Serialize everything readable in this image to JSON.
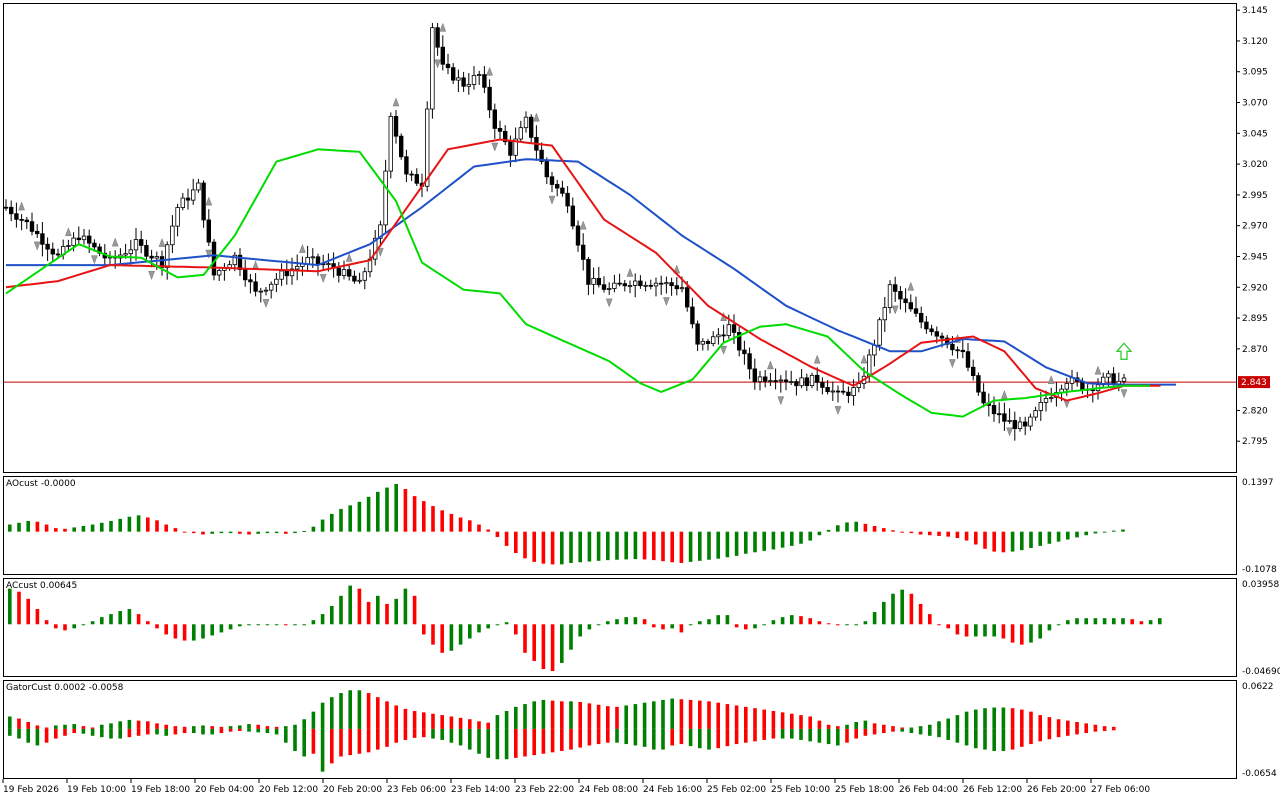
{
  "colors": {
    "bull": "#008000",
    "bear": "#ff0000",
    "jaw": "#1e50c8",
    "teeth": "#e61414",
    "lips": "#00dc00",
    "current_line": "#c80000",
    "fractal": "#999999",
    "arrow": "#32cd32"
  },
  "panes": {
    "ao_label": "AOcust -0.0000",
    "ac_label": "ACcust 0.00645",
    "gator_label": "GatorCust 0.0002 -0.0058"
  },
  "price_scale": [
    "3.145",
    "3.120",
    "3.095",
    "3.070",
    "3.045",
    "3.020",
    "2.995",
    "2.970",
    "2.945",
    "2.920",
    "2.895",
    "2.870",
    "2.820",
    "2.795"
  ],
  "current_price": "2.843",
  "ao_scale": {
    "max": "0.1397",
    "min": "-0.1078"
  },
  "ac_scale": {
    "max": "0.03958",
    "min": "-0.04690"
  },
  "gator_scale": {
    "max": "0.0622",
    "min": "-0.0654"
  },
  "time_labels": [
    "19 Feb 2026",
    "19 Feb 10:00",
    "19 Feb 18:00",
    "20 Feb 04:00",
    "20 Feb 12:00",
    "20 Feb 20:00",
    "23 Feb 06:00",
    "23 Feb 14:00",
    "23 Feb 22:00",
    "24 Feb 08:00",
    "24 Feb 16:00",
    "25 Feb 02:00",
    "25 Feb 10:00",
    "25 Feb 18:00",
    "26 Feb 04:00",
    "26 Feb 12:00",
    "26 Feb 20:00",
    "27 Feb 06:00"
  ],
  "chart_data": {
    "type": "candlestick",
    "timeframe": "1 hour",
    "ylim": [
      2.77,
      3.15
    ],
    "close_path": [
      [
        0,
        2.985
      ],
      [
        4,
        2.972
      ],
      [
        10,
        2.945
      ],
      [
        14,
        2.962
      ],
      [
        20,
        2.941
      ],
      [
        25,
        2.955
      ],
      [
        30,
        2.94
      ],
      [
        33,
        2.985
      ],
      [
        37,
        3.002
      ],
      [
        40,
        2.93
      ],
      [
        44,
        2.945
      ],
      [
        48,
        2.915
      ],
      [
        53,
        2.93
      ],
      [
        58,
        2.942
      ],
      [
        63,
        2.936
      ],
      [
        68,
        2.922
      ],
      [
        72,
        2.968
      ],
      [
        74,
        3.062
      ],
      [
        77,
        3.01
      ],
      [
        80,
        3.005
      ],
      [
        82,
        3.132
      ],
      [
        84,
        3.098
      ],
      [
        88,
        3.085
      ],
      [
        91,
        3.092
      ],
      [
        94,
        3.052
      ],
      [
        97,
        3.03
      ],
      [
        100,
        3.055
      ],
      [
        104,
        3.01
      ],
      [
        108,
        2.99
      ],
      [
        112,
        2.925
      ],
      [
        116,
        2.918
      ],
      [
        120,
        2.925
      ],
      [
        125,
        2.924
      ],
      [
        130,
        2.92
      ],
      [
        133,
        2.872
      ],
      [
        136,
        2.878
      ],
      [
        139,
        2.888
      ],
      [
        144,
        2.846
      ],
      [
        148,
        2.848
      ],
      [
        152,
        2.843
      ],
      [
        156,
        2.845
      ],
      [
        160,
        2.832
      ],
      [
        164,
        2.838
      ],
      [
        167,
        2.875
      ],
      [
        170,
        2.92
      ],
      [
        172,
        2.91
      ],
      [
        176,
        2.892
      ],
      [
        180,
        2.88
      ],
      [
        184,
        2.865
      ],
      [
        188,
        2.825
      ],
      [
        192,
        2.812
      ],
      [
        196,
        2.805
      ],
      [
        200,
        2.83
      ],
      [
        204,
        2.845
      ],
      [
        208,
        2.838
      ],
      [
        212,
        2.846
      ],
      [
        214,
        2.843
      ]
    ],
    "jaw_path": [
      [
        0,
        2.938
      ],
      [
        20,
        2.938
      ],
      [
        40,
        2.946
      ],
      [
        60,
        2.938
      ],
      [
        70,
        2.955
      ],
      [
        80,
        2.985
      ],
      [
        90,
        3.018
      ],
      [
        100,
        3.024
      ],
      [
        110,
        3.022
      ],
      [
        120,
        2.995
      ],
      [
        130,
        2.962
      ],
      [
        140,
        2.935
      ],
      [
        150,
        2.905
      ],
      [
        160,
        2.885
      ],
      [
        170,
        2.868
      ],
      [
        176,
        2.868
      ],
      [
        184,
        2.878
      ],
      [
        192,
        2.876
      ],
      [
        200,
        2.855
      ],
      [
        208,
        2.842
      ],
      [
        215,
        2.841
      ]
    ],
    "teeth_path": [
      [
        0,
        2.92
      ],
      [
        10,
        2.925
      ],
      [
        20,
        2.938
      ],
      [
        40,
        2.936
      ],
      [
        60,
        2.933
      ],
      [
        70,
        2.942
      ],
      [
        78,
        2.99
      ],
      [
        85,
        3.032
      ],
      [
        95,
        3.04
      ],
      [
        105,
        3.035
      ],
      [
        115,
        2.975
      ],
      [
        125,
        2.948
      ],
      [
        135,
        2.905
      ],
      [
        145,
        2.878
      ],
      [
        155,
        2.855
      ],
      [
        163,
        2.84
      ],
      [
        170,
        2.858
      ],
      [
        176,
        2.875
      ],
      [
        186,
        2.88
      ],
      [
        192,
        2.868
      ],
      [
        198,
        2.838
      ],
      [
        204,
        2.828
      ],
      [
        210,
        2.834
      ],
      [
        215,
        2.84
      ]
    ],
    "lips_path": [
      [
        0,
        2.915
      ],
      [
        8,
        2.938
      ],
      [
        14,
        2.955
      ],
      [
        20,
        2.945
      ],
      [
        26,
        2.944
      ],
      [
        33,
        2.928
      ],
      [
        38,
        2.93
      ],
      [
        44,
        2.962
      ],
      [
        52,
        3.022
      ],
      [
        60,
        3.032
      ],
      [
        68,
        3.03
      ],
      [
        75,
        2.99
      ],
      [
        80,
        2.94
      ],
      [
        88,
        2.918
      ],
      [
        95,
        2.915
      ],
      [
        100,
        2.89
      ],
      [
        108,
        2.875
      ],
      [
        116,
        2.86
      ],
      [
        122,
        2.842
      ],
      [
        126,
        2.835
      ],
      [
        132,
        2.845
      ],
      [
        138,
        2.875
      ],
      [
        145,
        2.888
      ],
      [
        150,
        2.89
      ],
      [
        158,
        2.88
      ],
      [
        165,
        2.852
      ],
      [
        172,
        2.833
      ],
      [
        178,
        2.818
      ],
      [
        184,
        2.815
      ],
      [
        190,
        2.828
      ],
      [
        196,
        2.83
      ],
      [
        204,
        2.835
      ],
      [
        210,
        2.838
      ],
      [
        215,
        2.84
      ]
    ],
    "ao": [
      0.02,
      0.025,
      0.03,
      0.028,
      0.02,
      0.01,
      0.008,
      0.012,
      0.016,
      0.02,
      0.025,
      0.03,
      0.036,
      0.042,
      0.046,
      0.04,
      0.032,
      0.02,
      0.01,
      0.0,
      -0.004,
      -0.008,
      -0.006,
      -0.004,
      -0.004,
      -0.006,
      -0.008,
      -0.006,
      -0.004,
      -0.004,
      -0.006,
      -0.004,
      0.002,
      0.014,
      0.034,
      0.05,
      0.064,
      0.074,
      0.084,
      0.098,
      0.112,
      0.124,
      0.134,
      0.12,
      0.1,
      0.086,
      0.072,
      0.06,
      0.05,
      0.04,
      0.032,
      0.02,
      0.006,
      -0.015,
      -0.04,
      -0.06,
      -0.075,
      -0.085,
      -0.09,
      -0.092,
      -0.092,
      -0.088,
      -0.086,
      -0.084,
      -0.082,
      -0.08,
      -0.079,
      -0.078,
      -0.077,
      -0.078,
      -0.08,
      -0.083,
      -0.086,
      -0.088,
      -0.085,
      -0.082,
      -0.079,
      -0.076,
      -0.072,
      -0.068,
      -0.062,
      -0.058,
      -0.054,
      -0.05,
      -0.045,
      -0.04,
      -0.034,
      -0.025,
      -0.01,
      0.005,
      0.018,
      0.026,
      0.028,
      0.022,
      0.016,
      0.01,
      0.004,
      0.0,
      -0.004,
      -0.008,
      -0.01,
      -0.012,
      -0.014,
      -0.018,
      -0.025,
      -0.036,
      -0.048,
      -0.056,
      -0.058,
      -0.056,
      -0.052,
      -0.046,
      -0.04,
      -0.034,
      -0.028,
      -0.022,
      -0.016,
      -0.01,
      -0.005,
      -0.001,
      0.003,
      0.006
    ],
    "ac": [
      0.035,
      0.032,
      0.025,
      0.015,
      0.004,
      -0.004,
      -0.006,
      -0.004,
      -0.001,
      0.003,
      0.007,
      0.01,
      0.013,
      0.015,
      0.01,
      0.003,
      -0.004,
      -0.01,
      -0.014,
      -0.016,
      -0.016,
      -0.014,
      -0.011,
      -0.008,
      -0.005,
      -0.002,
      -0.001,
      0.0,
      0.0,
      0.0,
      -0.001,
      -0.001,
      -0.001,
      0.004,
      0.01,
      0.018,
      0.028,
      0.038,
      0.035,
      0.022,
      0.028,
      0.02,
      0.025,
      0.035,
      0.028,
      -0.01,
      -0.02,
      -0.028,
      -0.026,
      -0.02,
      -0.014,
      -0.008,
      -0.004,
      -0.001,
      0.002,
      -0.01,
      -0.028,
      -0.036,
      -0.044,
      -0.046,
      -0.038,
      -0.025,
      -0.012,
      -0.005,
      0.0,
      0.003,
      0.005,
      0.007,
      0.007,
      0.005,
      -0.003,
      -0.005,
      -0.004,
      -0.008,
      -0.001,
      0.003,
      0.005,
      0.009,
      0.009,
      -0.003,
      -0.005,
      -0.004,
      0.0,
      0.004,
      0.007,
      0.009,
      0.008,
      0.006,
      0.003,
      0.001,
      -0.001,
      -0.001,
      -0.001,
      0.003,
      0.012,
      0.022,
      0.03,
      0.034,
      0.03,
      0.02,
      0.01,
      0.0,
      -0.004,
      -0.01,
      -0.012,
      -0.012,
      -0.012,
      -0.012,
      -0.014,
      -0.018,
      -0.02,
      -0.018,
      -0.014,
      -0.006,
      -0.001,
      0.004,
      0.006,
      0.006,
      0.006,
      0.006,
      0.006,
      0.006,
      0.005,
      0.003,
      0.004,
      0.006
    ],
    "gator_upper": [
      0.018,
      0.015,
      0.01,
      0.005,
      0.002,
      0.005,
      0.006,
      0.007,
      0.004,
      0.002,
      0.006,
      0.008,
      0.011,
      0.013,
      0.012,
      0.011,
      0.008,
      0.006,
      0.004,
      0.003,
      0.004,
      0.005,
      0.004,
      0.003,
      0.004,
      0.005,
      0.007,
      0.006,
      0.004,
      0.003,
      0.004,
      0.006,
      0.014,
      0.025,
      0.038,
      0.046,
      0.052,
      0.056,
      0.056,
      0.052,
      0.046,
      0.04,
      0.034,
      0.029,
      0.026,
      0.024,
      0.022,
      0.02,
      0.018,
      0.016,
      0.014,
      0.011,
      0.009,
      0.02,
      0.026,
      0.032,
      0.036,
      0.04,
      0.042,
      0.041,
      0.04,
      0.04,
      0.039,
      0.037,
      0.035,
      0.033,
      0.032,
      0.034,
      0.036,
      0.038,
      0.04,
      0.042,
      0.044,
      0.043,
      0.042,
      0.041,
      0.04,
      0.038,
      0.036,
      0.034,
      0.032,
      0.03,
      0.028,
      0.026,
      0.024,
      0.022,
      0.02,
      0.018,
      0.012,
      0.006,
      0.004,
      0.006,
      0.01,
      0.012,
      0.008,
      0.006,
      0.004,
      0.002,
      0.002,
      0.004,
      0.006,
      0.011,
      0.015,
      0.02,
      0.025,
      0.028,
      0.03,
      0.031,
      0.031,
      0.03,
      0.028,
      0.025,
      0.02,
      0.017,
      0.014,
      0.012,
      0.01,
      0.008,
      0.006,
      0.004,
      0.003
    ],
    "gator_lower": [
      -0.01,
      -0.014,
      -0.02,
      -0.024,
      -0.02,
      -0.014,
      -0.01,
      -0.006,
      -0.007,
      -0.01,
      -0.012,
      -0.014,
      -0.014,
      -0.012,
      -0.01,
      -0.008,
      -0.008,
      -0.01,
      -0.008,
      -0.006,
      -0.006,
      -0.008,
      -0.008,
      -0.006,
      -0.004,
      -0.003,
      -0.004,
      -0.005,
      -0.006,
      -0.008,
      -0.02,
      -0.032,
      -0.04,
      -0.036,
      -0.062,
      -0.05,
      -0.04,
      -0.038,
      -0.036,
      -0.034,
      -0.03,
      -0.026,
      -0.02,
      -0.016,
      -0.013,
      -0.012,
      -0.014,
      -0.016,
      -0.02,
      -0.024,
      -0.03,
      -0.036,
      -0.042,
      -0.044,
      -0.044,
      -0.042,
      -0.04,
      -0.038,
      -0.036,
      -0.034,
      -0.032,
      -0.03,
      -0.027,
      -0.024,
      -0.022,
      -0.02,
      -0.02,
      -0.022,
      -0.024,
      -0.026,
      -0.03,
      -0.03,
      -0.024,
      -0.022,
      -0.025,
      -0.028,
      -0.03,
      -0.028,
      -0.025,
      -0.022,
      -0.02,
      -0.018,
      -0.016,
      -0.014,
      -0.014,
      -0.014,
      -0.016,
      -0.018,
      -0.02,
      -0.022,
      -0.024,
      -0.02,
      -0.014,
      -0.01,
      -0.008,
      -0.006,
      -0.004,
      -0.004,
      -0.006,
      -0.008,
      -0.01,
      -0.012,
      -0.016,
      -0.02,
      -0.024,
      -0.028,
      -0.03,
      -0.032,
      -0.032,
      -0.03,
      -0.026,
      -0.022,
      -0.018,
      -0.015,
      -0.012,
      -0.01,
      -0.008,
      -0.006,
      -0.004,
      -0.003,
      -0.002
    ]
  }
}
